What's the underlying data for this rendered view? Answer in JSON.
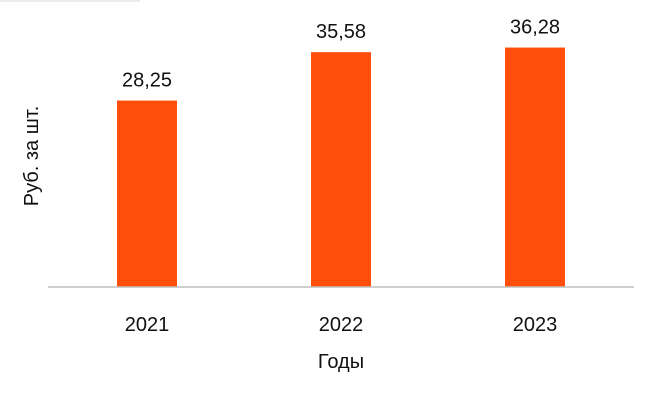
{
  "chart_data": {
    "type": "bar",
    "categories": [
      "2021",
      "2022",
      "2023"
    ],
    "values": [
      28.25,
      35.58,
      36.28
    ],
    "data_labels": [
      "28,25",
      "35,58",
      "36,28"
    ],
    "xlabel": "Годы",
    "ylabel": "Руб. за шт.",
    "ylim": [
      0,
      38
    ],
    "grid": false,
    "legend": "none",
    "colors": {
      "bar": "#ff4f0a",
      "axis": "#bfbfbf",
      "frame": "#d8d8d8",
      "text": "#111111"
    }
  }
}
